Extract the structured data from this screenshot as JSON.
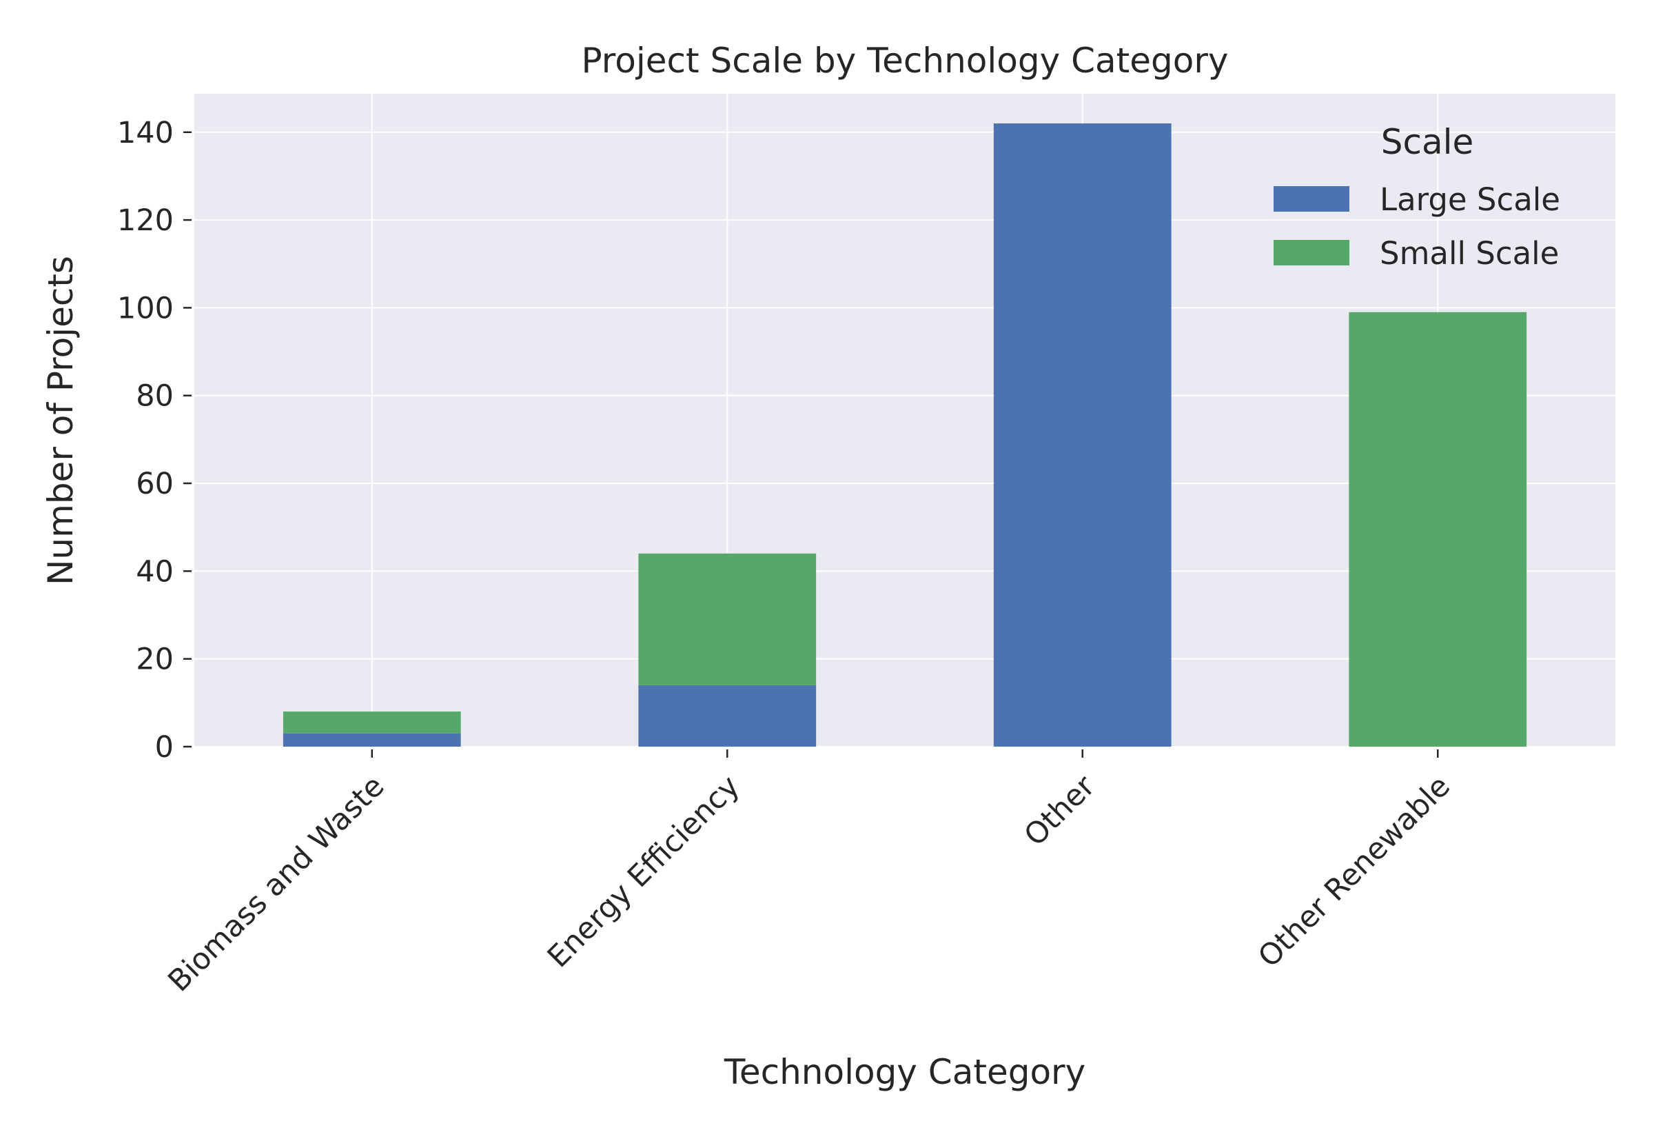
{
  "chart_data": {
    "type": "bar",
    "stacked": true,
    "title": "Project Scale by Technology Category",
    "xlabel": "Technology Category",
    "ylabel": "Number of Projects",
    "categories": [
      "Biomass and Waste",
      "Energy Efficiency",
      "Other",
      "Other Renewable"
    ],
    "series": [
      {
        "name": "Large Scale",
        "values": [
          3,
          14,
          142,
          0
        ],
        "color": "#4c72b0"
      },
      {
        "name": "Small Scale",
        "values": [
          5,
          30,
          0,
          99
        ],
        "color": "#55a868"
      }
    ],
    "ylim": [
      0,
      149
    ],
    "yticks": [
      0,
      20,
      40,
      60,
      80,
      100,
      120,
      140
    ],
    "grid": true,
    "legend": {
      "title": "Scale",
      "placement": "top-right"
    },
    "xtick_rotation": 45,
    "colors": {
      "background": "#eaeaf2",
      "grid": "#ffffff",
      "text": "#262626"
    }
  }
}
